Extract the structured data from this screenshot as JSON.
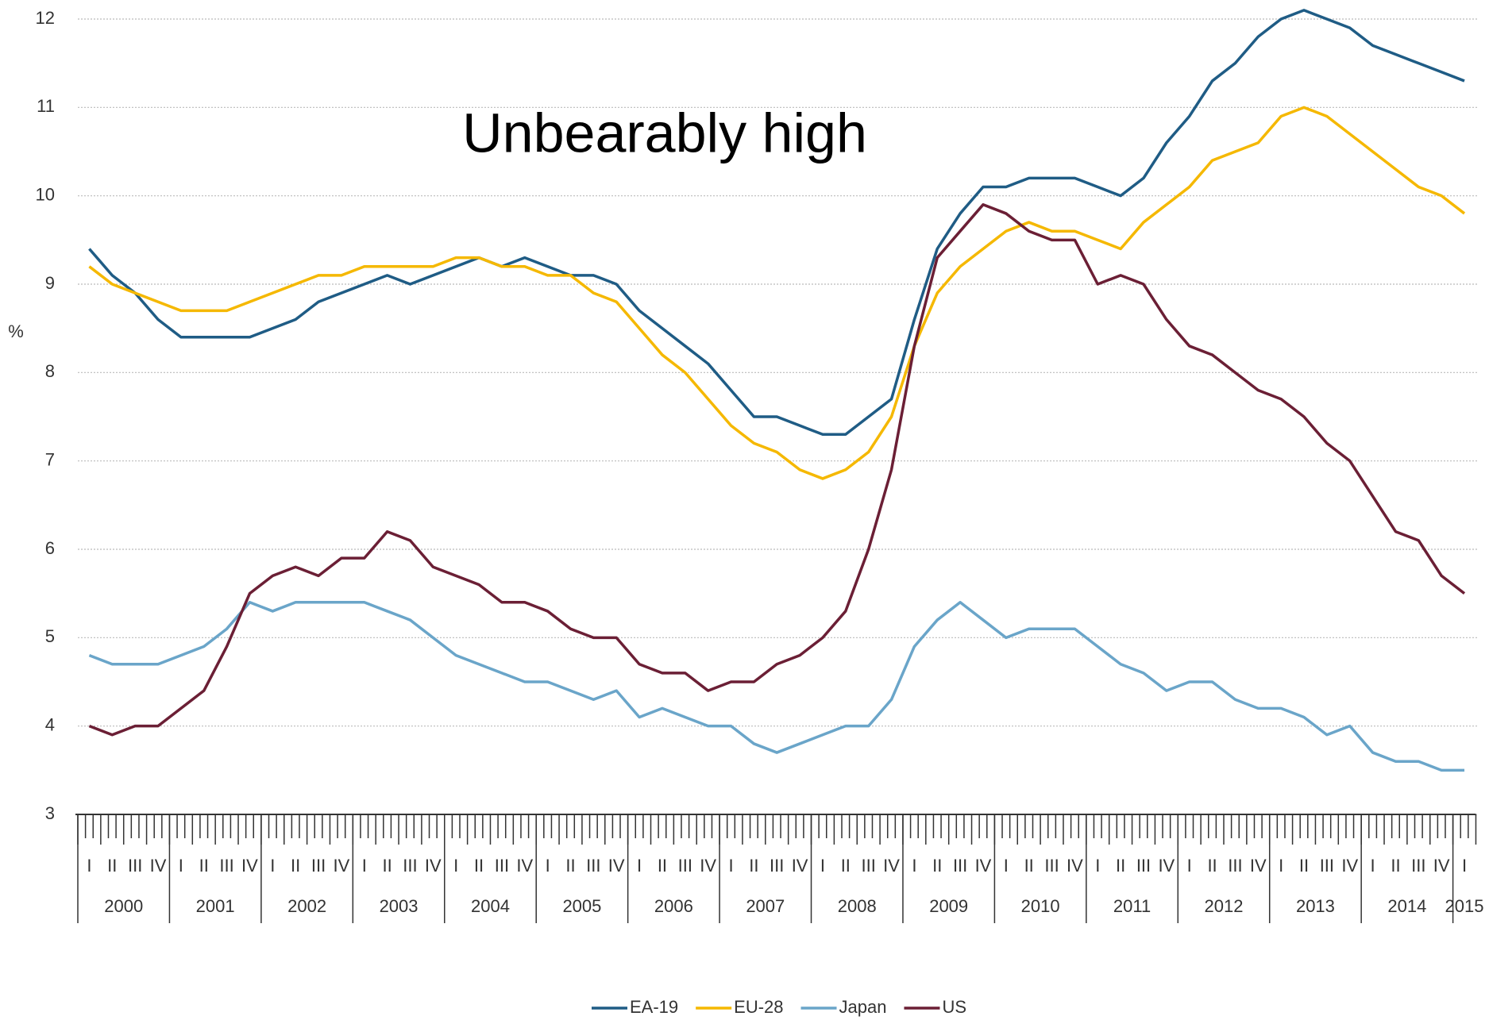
{
  "chart_data": {
    "type": "line",
    "annotation": "Unbearably high",
    "y_label": "%",
    "categories": [
      "I",
      "II",
      "III",
      "IV",
      "I",
      "II",
      "III",
      "IV",
      "I",
      "II",
      "III",
      "IV",
      "I",
      "II",
      "III",
      "IV",
      "I",
      "II",
      "III",
      "IV",
      "I",
      "II",
      "III",
      "IV",
      "I",
      "II",
      "III",
      "IV",
      "I",
      "II",
      "III",
      "IV",
      "I",
      "II",
      "III",
      "IV",
      "I",
      "II",
      "III",
      "IV",
      "I",
      "II",
      "III",
      "IV",
      "I",
      "II",
      "III",
      "IV",
      "I",
      "II",
      "III",
      "IV",
      "I",
      "II",
      "III",
      "IV",
      "I",
      "II",
      "III",
      "IV",
      "I"
    ],
    "years": [
      "2000",
      "2001",
      "2002",
      "2003",
      "2004",
      "2005",
      "2006",
      "2007",
      "2008",
      "2009",
      "2010",
      "2011",
      "2012",
      "2013",
      "2014",
      "2015"
    ],
    "series": [
      {
        "name": "EA-19",
        "color": "#1f5c85",
        "values": [
          9.4,
          9.1,
          8.9,
          8.6,
          8.4,
          8.4,
          8.4,
          8.4,
          8.5,
          8.6,
          8.8,
          8.9,
          9.0,
          9.1,
          9.0,
          9.1,
          9.2,
          9.3,
          9.2,
          9.3,
          9.2,
          9.1,
          9.1,
          9.0,
          8.7,
          8.5,
          8.3,
          8.1,
          7.8,
          7.5,
          7.5,
          7.4,
          7.3,
          7.3,
          7.5,
          7.7,
          8.6,
          9.4,
          9.8,
          10.1,
          10.1,
          10.2,
          10.2,
          10.2,
          10.1,
          10.0,
          10.2,
          10.6,
          10.9,
          11.3,
          11.5,
          11.8,
          12.0,
          12.1,
          12.0,
          11.9,
          11.7,
          11.6,
          11.5,
          11.4,
          11.3
        ]
      },
      {
        "name": "EU-28",
        "color": "#f5b800",
        "values": [
          9.2,
          9.0,
          8.9,
          8.8,
          8.7,
          8.7,
          8.7,
          8.8,
          8.9,
          9.0,
          9.1,
          9.1,
          9.2,
          9.2,
          9.2,
          9.2,
          9.3,
          9.3,
          9.2,
          9.2,
          9.1,
          9.1,
          8.9,
          8.8,
          8.5,
          8.2,
          8.0,
          7.7,
          7.4,
          7.2,
          7.1,
          6.9,
          6.8,
          6.9,
          7.1,
          7.5,
          8.3,
          8.9,
          9.2,
          9.4,
          9.6,
          9.7,
          9.6,
          9.6,
          9.5,
          9.4,
          9.7,
          9.9,
          10.1,
          10.4,
          10.5,
          10.6,
          10.9,
          11.0,
          10.9,
          10.7,
          10.5,
          10.3,
          10.1,
          10.0,
          9.8
        ]
      },
      {
        "name": "Japan",
        "color": "#6aa5c9",
        "values": [
          4.8,
          4.7,
          4.7,
          4.7,
          4.8,
          4.9,
          5.1,
          5.4,
          5.3,
          5.4,
          5.4,
          5.4,
          5.4,
          5.3,
          5.2,
          5.0,
          4.8,
          4.7,
          4.6,
          4.5,
          4.5,
          4.4,
          4.3,
          4.4,
          4.1,
          4.2,
          4.1,
          4.0,
          4.0,
          3.8,
          3.7,
          3.8,
          3.9,
          4.0,
          4.0,
          4.3,
          4.9,
          5.2,
          5.4,
          5.2,
          5.0,
          5.1,
          5.1,
          5.1,
          4.9,
          4.7,
          4.6,
          4.4,
          4.5,
          4.5,
          4.3,
          4.2,
          4.2,
          4.1,
          3.9,
          4.0,
          3.7,
          3.6,
          3.6,
          3.5,
          3.5
        ]
      },
      {
        "name": "US",
        "color": "#6b1f35",
        "values": [
          4.0,
          3.9,
          4.0,
          4.0,
          4.2,
          4.4,
          4.9,
          5.5,
          5.7,
          5.8,
          5.7,
          5.9,
          5.9,
          6.2,
          6.1,
          5.8,
          5.7,
          5.6,
          5.4,
          5.4,
          5.3,
          5.1,
          5.0,
          5.0,
          4.7,
          4.6,
          4.6,
          4.4,
          4.5,
          4.5,
          4.7,
          4.8,
          5.0,
          5.3,
          6.0,
          6.9,
          8.3,
          9.3,
          9.6,
          9.9,
          9.8,
          9.6,
          9.5,
          9.5,
          9.0,
          9.1,
          9.0,
          8.6,
          8.3,
          8.2,
          8.0,
          7.8,
          7.7,
          7.5,
          7.2,
          7.0,
          6.6,
          6.2,
          6.1,
          5.7,
          5.5
        ]
      }
    ],
    "ylim": [
      3,
      12
    ],
    "yticks": [
      3,
      4,
      5,
      6,
      7,
      8,
      9,
      10,
      11,
      12
    ],
    "grid": true,
    "legend": "bottom"
  }
}
